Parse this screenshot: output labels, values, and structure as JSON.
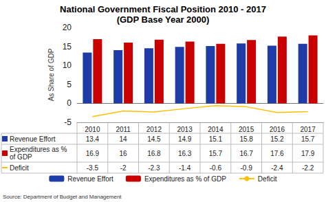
{
  "chart_data": {
    "type": "bar",
    "title": "National Government Fiscal Position 2010 - 2017",
    "subtitle": "(GDP Base Year 2000)",
    "y_label": "As Share of GDP",
    "source": "Source: Department of Budget and Management",
    "categories": [
      "2010",
      "2011",
      "2012",
      "2013",
      "2014",
      "2015",
      "2016",
      "2017"
    ],
    "series": [
      {
        "name": "Revenue Effort",
        "type": "bar",
        "color": "#1f3ca6",
        "values": [
          13.4,
          14,
          14.5,
          14.9,
          15.1,
          15.8,
          15.2,
          15.7
        ]
      },
      {
        "name": "Expenditures as % of GDP",
        "type": "bar",
        "color": "#c80000",
        "values": [
          16.9,
          16,
          16.8,
          16.3,
          15.7,
          16.7,
          17.6,
          17.9
        ]
      },
      {
        "name": "Deficit",
        "type": "line",
        "color": "#ffc000",
        "values": [
          -3.5,
          -2,
          -2.3,
          -1.4,
          -0.6,
          -0.9,
          -2.4,
          -2.2
        ]
      }
    ],
    "ylim": [
      -5,
      20
    ],
    "yticks": [
      -5,
      0,
      5,
      10,
      15,
      20
    ],
    "grid": false,
    "legend": "bottom"
  }
}
